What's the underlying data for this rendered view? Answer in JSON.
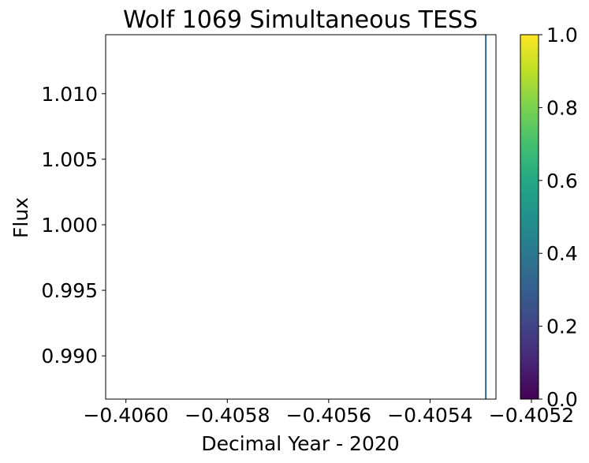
{
  "chart_data": {
    "type": "scatter",
    "title": "Wolf 1069 Simultaneous TESS",
    "xlabel": "Decimal Year - 2020",
    "ylabel": "Flux",
    "xlim": [
      -0.40604,
      -0.40527
    ],
    "ylim": [
      0.9867,
      1.0145
    ],
    "xticks": [
      -0.406,
      -0.4058,
      -0.4056,
      -0.4054,
      -0.4052
    ],
    "xtick_labels": [
      "−0.4060",
      "−0.4058",
      "−0.4056",
      "−0.4054",
      "−0.4052"
    ],
    "yticks": [
      0.99,
      0.995,
      1.0,
      1.005,
      1.01
    ],
    "ytick_labels": [
      "0.990",
      "0.995",
      "1.000",
      "1.005",
      "1.010"
    ],
    "series": [
      {
        "x": [
          -0.40529,
          -0.40529
        ],
        "y": [
          0.9867,
          1.0145
        ],
        "color": "#31688e"
      }
    ],
    "colorbar": {
      "colormap": "viridis",
      "range": [
        0,
        1
      ],
      "ticks": [
        0,
        0.2,
        0.4,
        0.6,
        0.8,
        1.0
      ],
      "tick_labels": [
        "0.0",
        "0.2",
        "0.4",
        "0.6",
        "0.8",
        "1.0"
      ]
    },
    "grid": false
  }
}
